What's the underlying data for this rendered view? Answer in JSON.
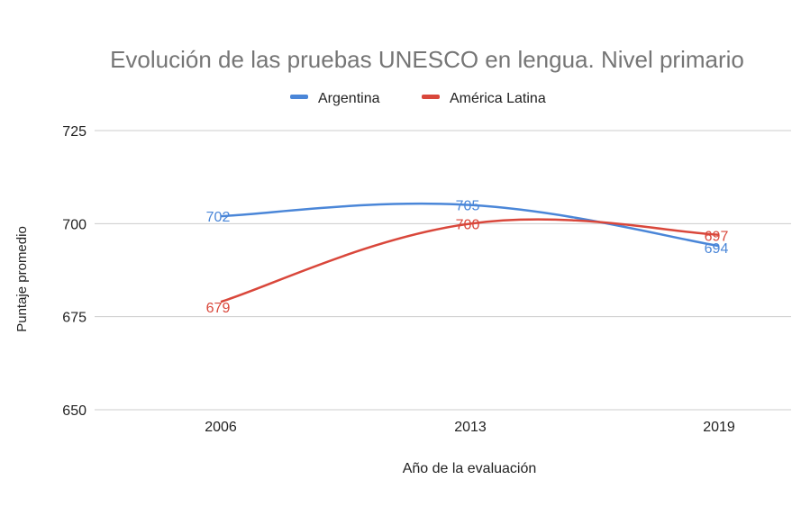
{
  "chart_data": {
    "type": "line",
    "title": "Evolución de las pruebas UNESCO en lengua. Nivel primario",
    "xlabel": "Año de la evaluación",
    "ylabel": "Puntaje promedio",
    "categories": [
      "2006",
      "2013",
      "2019"
    ],
    "yticks": [
      "650",
      "675",
      "700",
      "725"
    ],
    "ylim": [
      650,
      725
    ],
    "grid": true,
    "legend": "top",
    "series": [
      {
        "name": "Argentina",
        "color": "#4a86d8",
        "values": [
          702,
          705,
          694
        ]
      },
      {
        "name": "América Latina",
        "color": "#d9473b",
        "values": [
          679,
          700,
          697
        ]
      }
    ]
  }
}
